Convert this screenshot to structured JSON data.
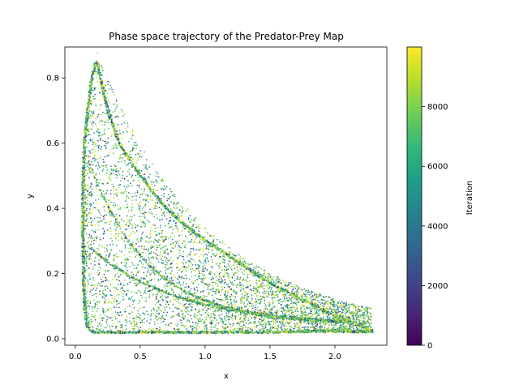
{
  "chart_data": {
    "type": "scatter",
    "title": "Phase space trajectory of the Predator-Prey Map",
    "xlabel": "x",
    "ylabel": "y",
    "xlim": [
      -0.08,
      2.4
    ],
    "ylim": [
      -0.02,
      0.895
    ],
    "xticks": [
      0.0,
      0.5,
      1.0,
      1.5,
      2.0
    ],
    "xtick_labels": [
      "0.0",
      "0.5",
      "1.0",
      "1.5",
      "2.0"
    ],
    "yticks": [
      0.0,
      0.2,
      0.4,
      0.6,
      0.8
    ],
    "ytick_labels": [
      "0.0",
      "0.2",
      "0.4",
      "0.6",
      "0.8"
    ],
    "grid": false,
    "colormap": "viridis",
    "colormap_stops": [
      "#440154",
      "#482878",
      "#3e4989",
      "#31688e",
      "#26828e",
      "#1f9e89",
      "#35b779",
      "#6ece58",
      "#b5de2b",
      "#fde725"
    ],
    "colorbar": {
      "label": "Iteration",
      "range": [
        0,
        10000
      ],
      "ticks": [
        0,
        2000,
        4000,
        6000,
        8000
      ],
      "tick_labels": [
        "0",
        "2000",
        "4000",
        "6000",
        "8000"
      ]
    },
    "series": [
      {
        "color_by": "iteration",
        "iterations": 10000,
        "boundary": [
          [
            0.07,
            0.12
          ],
          [
            0.09,
            0.04
          ],
          [
            0.13,
            0.02
          ],
          [
            0.5,
            0.02
          ],
          [
            1.0,
            0.02
          ],
          [
            1.5,
            0.02
          ],
          [
            2.0,
            0.025
          ],
          [
            2.2,
            0.022
          ],
          [
            2.29,
            0.022
          ],
          [
            2.2,
            0.04
          ],
          [
            2.0,
            0.07
          ],
          [
            1.8,
            0.11
          ],
          [
            1.5,
            0.17
          ],
          [
            1.2,
            0.25
          ],
          [
            0.9,
            0.33
          ],
          [
            0.7,
            0.4
          ],
          [
            0.5,
            0.5
          ],
          [
            0.35,
            0.59
          ],
          [
            0.25,
            0.7
          ],
          [
            0.2,
            0.79
          ],
          [
            0.17,
            0.85
          ],
          [
            0.15,
            0.84
          ],
          [
            0.12,
            0.78
          ],
          [
            0.09,
            0.68
          ],
          [
            0.07,
            0.6
          ],
          [
            0.06,
            0.45
          ],
          [
            0.06,
            0.3
          ],
          [
            0.065,
            0.18
          ]
        ]
      }
    ]
  }
}
